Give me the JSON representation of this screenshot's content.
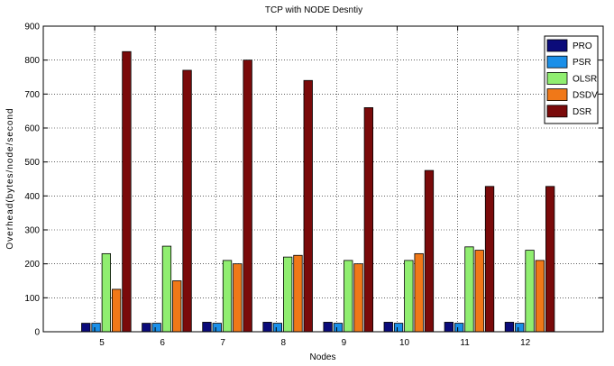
{
  "chart_data": {
    "type": "bar",
    "title": "TCP with NODE Desntiy",
    "xlabel": "Nodes",
    "ylabel": "Overhead(bytes/node/second",
    "categories": [
      "5",
      "6",
      "7",
      "8",
      "9",
      "10",
      "11",
      "12"
    ],
    "ylim": [
      0,
      900
    ],
    "yticks": [
      0,
      100,
      200,
      300,
      400,
      500,
      600,
      700,
      800,
      900
    ],
    "grid": true,
    "legend_position": "top-right",
    "series": [
      {
        "name": "PRO",
        "color": "#0b0b7a",
        "values": [
          25,
          25,
          28,
          28,
          28,
          28,
          28,
          28
        ]
      },
      {
        "name": "PSR",
        "color": "#1a8fe8",
        "values": [
          25,
          25,
          25,
          25,
          25,
          25,
          25,
          25
        ]
      },
      {
        "name": "OLSR",
        "color": "#90ee70",
        "values": [
          230,
          252,
          210,
          220,
          210,
          210,
          250,
          240
        ]
      },
      {
        "name": "DSDV",
        "color": "#f07818",
        "values": [
          125,
          150,
          200,
          225,
          200,
          230,
          240,
          210
        ]
      },
      {
        "name": "DSR",
        "color": "#7a0a0a",
        "values": [
          825,
          770,
          800,
          740,
          660,
          475,
          428,
          428
        ]
      }
    ]
  }
}
